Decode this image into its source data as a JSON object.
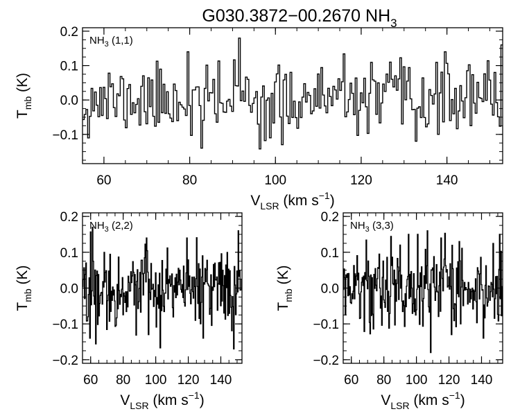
{
  "chart_data": {
    "title": {
      "main": "G030.3872−00.2670 NH",
      "sub": "3"
    },
    "panels": [
      {
        "id": "nh3-11",
        "type": "line",
        "label": {
          "main": "NH",
          "sub": "3",
          "rest": " (1,1)"
        },
        "xlabel": {
          "main": "V",
          "sub": "LSR",
          "rest": " (km s",
          "sup": "−1",
          "end": ")"
        },
        "ylabel": {
          "main": "T",
          "sub": "mb",
          "rest": " (K)"
        },
        "xlim": [
          55,
          153
        ],
        "ylim": [
          -0.185,
          0.21
        ],
        "xticks": [
          60,
          80,
          100,
          120,
          140
        ],
        "xtick_labels": [
          "60",
          "80",
          "100",
          "120",
          "140"
        ],
        "yticks": [
          -0.1,
          0.0,
          0.1,
          0.2
        ],
        "ytick_labels": [
          "−0.1",
          "0.0",
          "0.1",
          "0.2"
        ],
        "x_minor_step": 5,
        "y_minor_step": 0.025,
        "channel_width": 0.4,
        "noise_rms": 0.05,
        "seed": 11,
        "spikes": [
          [
            79.6,
            0.14
          ],
          [
            82.8,
            -0.14
          ],
          [
            91.4,
            0.18
          ],
          [
            98.5,
            -0.11
          ],
          [
            101.2,
            -0.13
          ],
          [
            126.6,
            0.11
          ],
          [
            132.4,
            -0.12
          ],
          [
            139.5,
            0.14
          ],
          [
            152.5,
            0.16
          ]
        ]
      },
      {
        "id": "nh3-22",
        "type": "line",
        "label": {
          "main": "NH",
          "sub": "3",
          "rest": " (2,2)"
        },
        "xlabel": {
          "main": "V",
          "sub": "LSR",
          "rest": " (km s",
          "sup": "−1",
          "end": ")"
        },
        "ylabel": {
          "main": "T",
          "sub": "mb",
          "rest": " (K)"
        },
        "xlim": [
          55,
          153
        ],
        "ylim": [
          -0.21,
          0.21
        ],
        "xticks": [
          60,
          80,
          100,
          120,
          140
        ],
        "xtick_labels": [
          "60",
          "80",
          "100",
          "120",
          "140"
        ],
        "yticks": [
          -0.2,
          -0.1,
          0.0,
          0.1,
          0.2
        ],
        "ytick_labels": [
          "−0.2",
          "−0.1",
          "0.0",
          "0.1",
          "0.2"
        ],
        "x_minor_step": 5,
        "y_minor_step": 0.025,
        "channel_width": 0.4,
        "noise_rms": 0.05,
        "seed": 22,
        "spikes": [
          [
            59.5,
            -0.14
          ],
          [
            61.0,
            0.17
          ],
          [
            94.2,
            0.14
          ],
          [
            95.5,
            -0.13
          ],
          [
            119.0,
            0.14
          ],
          [
            129.0,
            -0.14
          ],
          [
            147.8,
            -0.17
          ],
          [
            150.5,
            0.16
          ]
        ]
      },
      {
        "id": "nh3-33",
        "type": "line",
        "label": {
          "main": "NH",
          "sub": "3",
          "rest": " (3,3)"
        },
        "xlabel": {
          "main": "V",
          "sub": "LSR",
          "rest": " (km s",
          "sup": "−1",
          "end": ")"
        },
        "ylabel": {
          "main": "T",
          "sub": "mb",
          "rest": " (K)"
        },
        "xlim": [
          55,
          153
        ],
        "ylim": [
          -0.21,
          0.21
        ],
        "xticks": [
          60,
          80,
          100,
          120,
          140
        ],
        "xtick_labels": [
          "60",
          "80",
          "100",
          "120",
          "140"
        ],
        "yticks": [
          -0.2,
          -0.1,
          0.0,
          0.1,
          0.2
        ],
        "ytick_labels": [
          "−0.2",
          "−0.1",
          "0.0",
          "0.1",
          "0.2"
        ],
        "x_minor_step": 5,
        "y_minor_step": 0.025,
        "channel_width": 0.4,
        "noise_rms": 0.055,
        "seed": 33,
        "spikes": [
          [
            95.0,
            0.15
          ],
          [
            100.5,
            0.15
          ],
          [
            106.5,
            0.16
          ],
          [
            108.5,
            -0.18
          ],
          [
            115.0,
            0.14
          ],
          [
            121.5,
            -0.13
          ],
          [
            126.0,
            0.13
          ],
          [
            141.0,
            -0.14
          ],
          [
            151.0,
            0.15
          ]
        ]
      }
    ]
  }
}
